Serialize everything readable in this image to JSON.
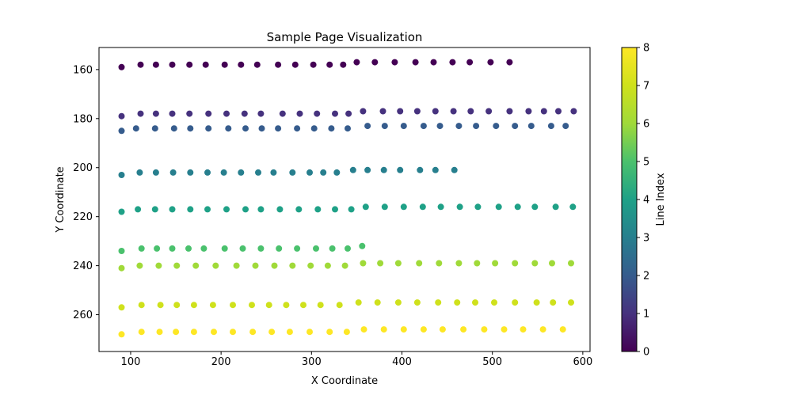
{
  "chart_data": {
    "type": "scatter",
    "title": "Sample Page Visualization",
    "xlabel": "X Coordinate",
    "ylabel": "Y Coordinate",
    "xlim": [
      65,
      608
    ],
    "ylim": [
      275,
      151
    ],
    "y_inverted": true,
    "grid": false,
    "x_ticks": [
      100,
      200,
      300,
      400,
      500,
      600
    ],
    "y_ticks": [
      160,
      180,
      200,
      220,
      240,
      260
    ],
    "colorbar": {
      "label": "Line Index",
      "min": 0,
      "max": 8,
      "ticks": [
        0,
        1,
        2,
        3,
        4,
        5,
        6,
        7,
        8
      ],
      "colormap": "viridis"
    },
    "lines": [
      {
        "index": 0,
        "x": [
          90,
          111,
          128,
          146,
          165,
          183,
          204,
          222,
          240,
          263,
          282,
          302,
          320,
          335,
          350,
          370,
          392,
          415,
          435,
          456,
          475,
          498,
          519
        ],
        "y": [
          159,
          158,
          158,
          158,
          158,
          158,
          158,
          158,
          158,
          158,
          158,
          158,
          158,
          158,
          157,
          157,
          157,
          157,
          157,
          157,
          157,
          157,
          157
        ]
      },
      {
        "index": 1,
        "x": [
          90,
          111,
          128,
          146,
          165,
          186,
          206,
          226,
          244,
          268,
          287,
          306,
          326,
          341,
          357,
          379,
          398,
          417,
          437,
          457,
          476,
          496,
          519,
          540,
          557,
          573,
          590
        ],
        "y": [
          179,
          178,
          178,
          178,
          178,
          178,
          178,
          178,
          178,
          178,
          178,
          178,
          178,
          178,
          177,
          177,
          177,
          177,
          177,
          177,
          177,
          177,
          177,
          177,
          177,
          177,
          177
        ]
      },
      {
        "index": 2,
        "x": [
          90,
          106,
          127,
          148,
          166,
          186,
          208,
          227,
          245,
          263,
          284,
          303,
          322,
          340,
          362,
          381,
          402,
          424,
          442,
          463,
          482,
          504,
          525,
          543,
          565,
          581
        ],
        "y": [
          185,
          184,
          184,
          184,
          184,
          184,
          184,
          184,
          184,
          184,
          184,
          184,
          184,
          184,
          183,
          183,
          183,
          183,
          183,
          183,
          183,
          183,
          183,
          183,
          183,
          183
        ]
      },
      {
        "index": 3,
        "x": [
          90,
          110,
          128,
          147,
          166,
          185,
          203,
          222,
          241,
          258,
          279,
          298,
          313,
          328,
          346,
          362,
          380,
          398,
          420,
          437,
          458
        ],
        "y": [
          203,
          202,
          202,
          202,
          202,
          202,
          202,
          202,
          202,
          202,
          202,
          202,
          202,
          202,
          201,
          201,
          201,
          201,
          201,
          201,
          201
        ]
      },
      {
        "index": 4,
        "x": [
          90,
          108,
          127,
          146,
          166,
          185,
          206,
          227,
          244,
          265,
          286,
          307,
          326,
          344,
          360,
          381,
          402,
          423,
          443,
          464,
          484,
          507,
          528,
          547,
          570,
          589
        ],
        "y": [
          218,
          217,
          217,
          217,
          217,
          217,
          217,
          217,
          217,
          217,
          217,
          217,
          217,
          217,
          216,
          216,
          216,
          216,
          216,
          216,
          216,
          216,
          216,
          216,
          216,
          216
        ]
      },
      {
        "index": 5,
        "x": [
          90,
          112,
          129,
          146,
          164,
          181,
          204,
          224,
          244,
          264,
          284,
          305,
          323,
          340,
          356
        ],
        "y": [
          234,
          233,
          233,
          233,
          233,
          233,
          233,
          233,
          233,
          233,
          233,
          233,
          233,
          233,
          232
        ]
      },
      {
        "index": 6,
        "x": [
          90,
          110,
          131,
          151,
          172,
          194,
          217,
          238,
          259,
          279,
          299,
          318,
          337,
          357,
          376,
          396,
          419,
          441,
          463,
          483,
          503,
          525,
          547,
          566,
          587
        ],
        "y": [
          241,
          240,
          240,
          240,
          240,
          240,
          240,
          240,
          240,
          240,
          240,
          240,
          240,
          239,
          239,
          239,
          239,
          239,
          239,
          239,
          239,
          239,
          239,
          239,
          239
        ]
      },
      {
        "index": 7,
        "x": [
          90,
          112,
          133,
          151,
          170,
          191,
          213,
          234,
          253,
          272,
          291,
          310,
          331,
          352,
          373,
          396,
          417,
          440,
          461,
          481,
          502,
          525,
          549,
          567,
          587
        ],
        "y": [
          257,
          256,
          256,
          256,
          256,
          256,
          256,
          256,
          256,
          256,
          256,
          256,
          256,
          255,
          255,
          255,
          255,
          255,
          255,
          255,
          255,
          255,
          255,
          255,
          255
        ]
      },
      {
        "index": 8,
        "x": [
          90,
          112,
          132,
          150,
          170,
          192,
          213,
          235,
          256,
          276,
          298,
          320,
          339,
          358,
          380,
          402,
          424,
          445,
          468,
          491,
          513,
          534,
          556,
          578
        ],
        "y": [
          268,
          267,
          267,
          267,
          267,
          267,
          267,
          267,
          267,
          267,
          267,
          267,
          267,
          266,
          266,
          266,
          266,
          266,
          266,
          266,
          266,
          266,
          266,
          266
        ]
      }
    ]
  }
}
